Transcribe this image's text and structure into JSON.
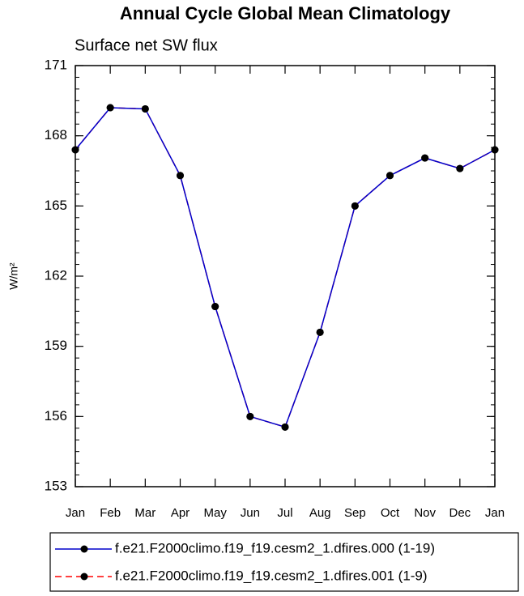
{
  "chart_data": {
    "type": "line",
    "title": "Annual Cycle Global Mean Climatology",
    "subtitle": "Surface net SW flux",
    "ylabel": "W/m²",
    "categories": [
      "Jan",
      "Feb",
      "Mar",
      "Apr",
      "May",
      "Jun",
      "Jul",
      "Aug",
      "Sep",
      "Oct",
      "Nov",
      "Dec",
      "Jan"
    ],
    "series": [
      {
        "name": "f.e21.F2000climo.f19_f19.cesm2_1.dfires.000 (1-19)",
        "color": "#0000cc",
        "dash": false,
        "values": [
          167.4,
          169.2,
          169.15,
          166.3,
          160.7,
          156.0,
          155.55,
          159.6,
          165.0,
          166.3,
          167.05,
          166.6,
          167.4
        ]
      },
      {
        "name": "f.e21.F2000climo.f19_f19.cesm2_1.dfires.001 (1-9)",
        "color": "#ff0000",
        "dash": true,
        "values": [
          167.4,
          169.2,
          169.15,
          166.3,
          160.7,
          156.0,
          155.55,
          159.6,
          165.0,
          166.3,
          167.05,
          166.6,
          167.4
        ]
      }
    ],
    "ylim": [
      153,
      171
    ],
    "yticks": [
      153,
      156,
      159,
      162,
      165,
      168,
      171
    ]
  }
}
